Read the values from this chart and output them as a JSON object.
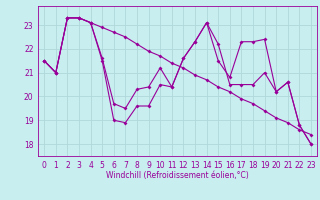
{
  "background_color": "#c8eef0",
  "line_color": "#990099",
  "grid_color": "#b0d8da",
  "xlabel": "Windchill (Refroidissement éolien,°C)",
  "ylim": [
    17.5,
    23.8
  ],
  "xlim": [
    -0.5,
    23.5
  ],
  "yticks": [
    18,
    19,
    20,
    21,
    22,
    23
  ],
  "xticks": [
    0,
    1,
    2,
    3,
    4,
    5,
    6,
    7,
    8,
    9,
    10,
    11,
    12,
    13,
    14,
    15,
    16,
    17,
    18,
    19,
    20,
    21,
    22,
    23
  ],
  "series1_y": [
    21.5,
    21.0,
    23.3,
    23.3,
    23.1,
    21.6,
    19.7,
    19.5,
    20.3,
    20.4,
    21.2,
    20.4,
    21.6,
    22.3,
    23.1,
    22.2,
    20.5,
    20.5,
    20.5,
    21.0,
    20.2,
    20.6,
    18.8,
    18.0
  ],
  "series2_y": [
    21.5,
    21.0,
    23.3,
    23.3,
    23.1,
    21.5,
    19.0,
    18.9,
    19.6,
    19.6,
    20.5,
    20.4,
    21.6,
    22.3,
    23.1,
    21.5,
    20.8,
    22.3,
    22.3,
    22.4,
    20.2,
    20.6,
    18.8,
    18.0
  ],
  "series3_y": [
    21.5,
    21.0,
    23.3,
    23.3,
    23.1,
    22.9,
    22.7,
    22.5,
    22.2,
    21.9,
    21.7,
    21.4,
    21.2,
    20.9,
    20.7,
    20.4,
    20.2,
    19.9,
    19.7,
    19.4,
    19.1,
    18.9,
    18.6,
    18.4
  ]
}
